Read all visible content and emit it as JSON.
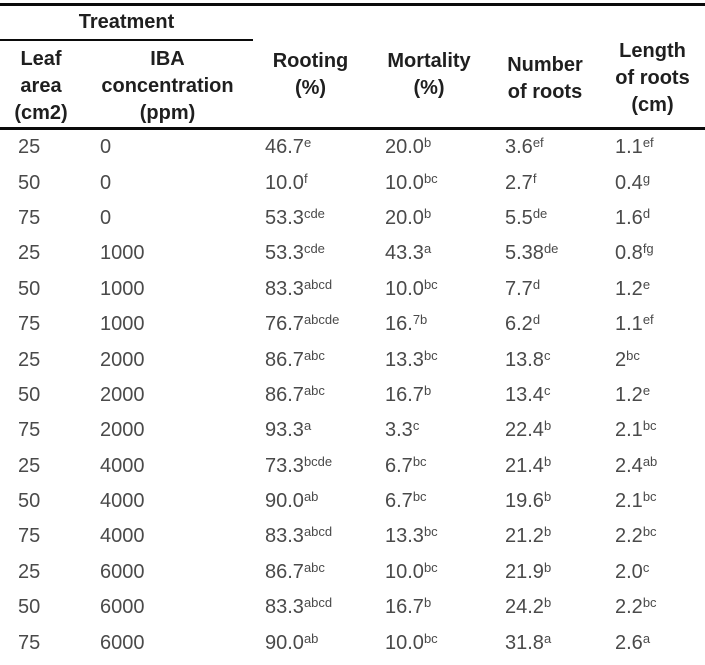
{
  "table": {
    "group_header": {
      "label": "Treatment"
    },
    "columns": [
      {
        "label": "Leaf\narea\n(cm2)"
      },
      {
        "label": "IBA\nconcentration\n(ppm)"
      },
      {
        "label": "Rooting\n(%)"
      },
      {
        "label": "Mortality\n(%)"
      },
      {
        "label": "Number\nof roots"
      },
      {
        "label": "Length\nof roots\n(cm)"
      }
    ],
    "rows": [
      {
        "cells": [
          {
            "v": "25",
            "s": ""
          },
          {
            "v": "0",
            "s": ""
          },
          {
            "v": "46.7",
            "s": "e"
          },
          {
            "v": "20.0",
            "s": "b"
          },
          {
            "v": "3.6",
            "s": "ef"
          },
          {
            "v": "1.1",
            "s": "ef"
          }
        ]
      },
      {
        "cells": [
          {
            "v": "50",
            "s": ""
          },
          {
            "v": "0",
            "s": ""
          },
          {
            "v": "10.0",
            "s": "f"
          },
          {
            "v": "10.0",
            "s": "bc"
          },
          {
            "v": "2.7",
            "s": "f"
          },
          {
            "v": "0.4",
            "s": "g"
          }
        ]
      },
      {
        "cells": [
          {
            "v": "75",
            "s": ""
          },
          {
            "v": "0",
            "s": ""
          },
          {
            "v": "53.3",
            "s": "cde"
          },
          {
            "v": "20.0",
            "s": "b"
          },
          {
            "v": "5.5",
            "s": "de"
          },
          {
            "v": "1.6",
            "s": "d"
          }
        ]
      },
      {
        "cells": [
          {
            "v": "25",
            "s": ""
          },
          {
            "v": "1000",
            "s": ""
          },
          {
            "v": "53.3",
            "s": "cde"
          },
          {
            "v": "43.3",
            "s": "a"
          },
          {
            "v": "5.38",
            "s": "de"
          },
          {
            "v": "0.8",
            "s": "fg"
          }
        ]
      },
      {
        "cells": [
          {
            "v": "50",
            "s": ""
          },
          {
            "v": "1000",
            "s": ""
          },
          {
            "v": "83.3",
            "s": "abcd"
          },
          {
            "v": "10.0",
            "s": "bc"
          },
          {
            "v": "7.7",
            "s": "d"
          },
          {
            "v": "1.2",
            "s": "e"
          }
        ]
      },
      {
        "cells": [
          {
            "v": "75",
            "s": ""
          },
          {
            "v": "1000",
            "s": ""
          },
          {
            "v": "76.7",
            "s": "abcde"
          },
          {
            "v": "16.",
            "s": "7b"
          },
          {
            "v": "6.2",
            "s": "d"
          },
          {
            "v": "1.1",
            "s": "ef"
          }
        ]
      },
      {
        "cells": [
          {
            "v": "25",
            "s": ""
          },
          {
            "v": "2000",
            "s": ""
          },
          {
            "v": "86.7",
            "s": "abc"
          },
          {
            "v": "13.3",
            "s": "bc"
          },
          {
            "v": "13.8",
            "s": "c"
          },
          {
            "v": "2",
            "s": "bc"
          }
        ]
      },
      {
        "cells": [
          {
            "v": "50",
            "s": ""
          },
          {
            "v": "2000",
            "s": ""
          },
          {
            "v": "86.7",
            "s": "abc"
          },
          {
            "v": "16.7",
            "s": "b"
          },
          {
            "v": "13.4",
            "s": "c"
          },
          {
            "v": "1.2",
            "s": "e"
          }
        ]
      },
      {
        "cells": [
          {
            "v": "75",
            "s": ""
          },
          {
            "v": "2000",
            "s": ""
          },
          {
            "v": "93.3",
            "s": "a"
          },
          {
            "v": "3.3",
            "s": "c"
          },
          {
            "v": "22.4",
            "s": "b"
          },
          {
            "v": "2.1",
            "s": "bc"
          }
        ]
      },
      {
        "cells": [
          {
            "v": "25",
            "s": ""
          },
          {
            "v": "4000",
            "s": ""
          },
          {
            "v": "73.3",
            "s": "bcde"
          },
          {
            "v": "6.7",
            "s": "bc"
          },
          {
            "v": "21.4",
            "s": "b"
          },
          {
            "v": "2.4",
            "s": "ab"
          }
        ]
      },
      {
        "cells": [
          {
            "v": "50",
            "s": ""
          },
          {
            "v": "4000",
            "s": ""
          },
          {
            "v": "90.0",
            "s": "ab"
          },
          {
            "v": "6.7",
            "s": "bc"
          },
          {
            "v": "19.6",
            "s": "b"
          },
          {
            "v": "2.1",
            "s": "bc"
          }
        ]
      },
      {
        "cells": [
          {
            "v": "75",
            "s": ""
          },
          {
            "v": "4000",
            "s": ""
          },
          {
            "v": "83.3",
            "s": "abcd"
          },
          {
            "v": "13.3",
            "s": "bc"
          },
          {
            "v": "21.2",
            "s": "b"
          },
          {
            "v": "2.2",
            "s": "bc"
          }
        ]
      },
      {
        "cells": [
          {
            "v": "25",
            "s": ""
          },
          {
            "v": "6000",
            "s": ""
          },
          {
            "v": "86.7",
            "s": "abc"
          },
          {
            "v": "10.0",
            "s": "bc"
          },
          {
            "v": "21.9",
            "s": "b"
          },
          {
            "v": "2.0",
            "s": "c"
          }
        ]
      },
      {
        "cells": [
          {
            "v": "50",
            "s": ""
          },
          {
            "v": "6000",
            "s": ""
          },
          {
            "v": "83.3",
            "s": "abcd"
          },
          {
            "v": "16.7",
            "s": "b"
          },
          {
            "v": "24.2",
            "s": "b"
          },
          {
            "v": "2.2",
            "s": "bc"
          }
        ]
      },
      {
        "cells": [
          {
            "v": "75",
            "s": ""
          },
          {
            "v": "6000",
            "s": ""
          },
          {
            "v": "90.0",
            "s": "ab"
          },
          {
            "v": "10.0",
            "s": "bc"
          },
          {
            "v": "31.8",
            "s": "a"
          },
          {
            "v": "2.6",
            "s": "a"
          }
        ]
      }
    ]
  },
  "colors": {
    "header_text": "#1f1f1f",
    "body_text": "#4a4a4a",
    "rule": "#0b0b0b",
    "background": "#ffffff"
  }
}
